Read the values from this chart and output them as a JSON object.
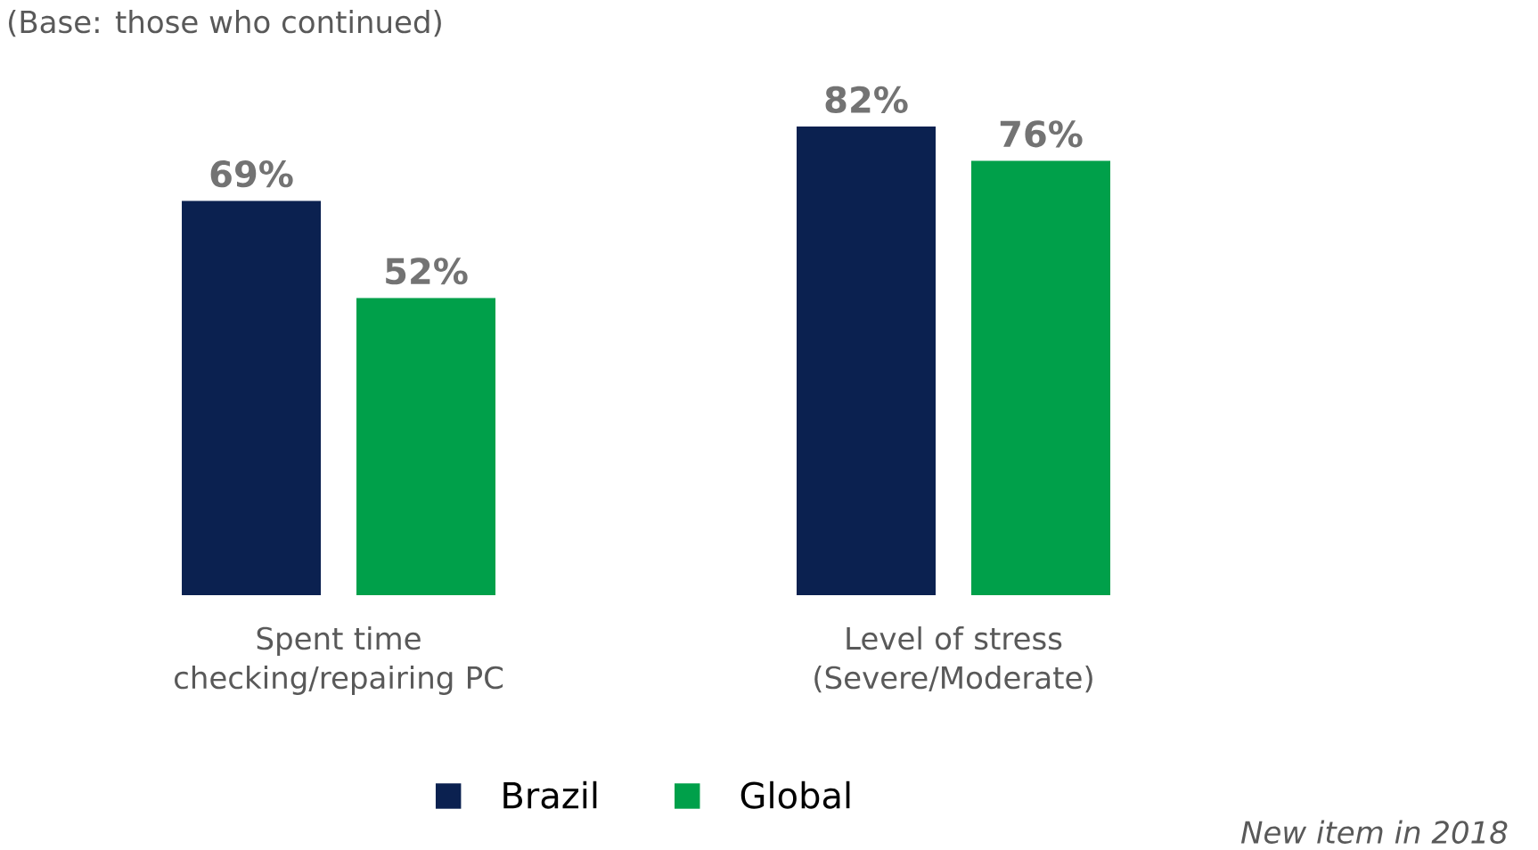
{
  "chart_data": {
    "type": "bar",
    "categories": [
      "Spent time checking/repairing PC",
      "Level of stress (Severe/Moderate)"
    ],
    "series": [
      {
        "name": "Brazil",
        "color": "#0b2150",
        "values": [
          69,
          82
        ],
        "value_labels": [
          "69%",
          "82%"
        ]
      },
      {
        "name": "Global",
        "color": "#00a04a",
        "values": [
          52,
          76
        ],
        "value_labels": [
          "52%",
          "76%"
        ]
      }
    ],
    "legend": "bottom",
    "annotations": [
      "(Base: those who continued)",
      "New item in 2018"
    ]
  }
}
